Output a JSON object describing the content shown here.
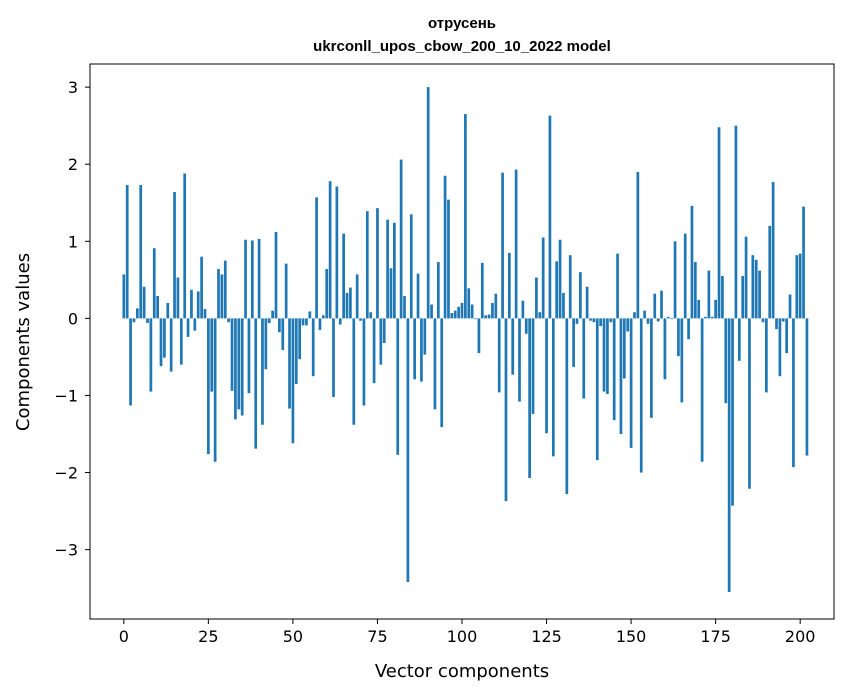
{
  "chart_data": {
    "type": "bar",
    "title": "отрусень",
    "subtitle": "ukrconll_upos_cbow_200_10_2022 model",
    "xlabel": "Vector components",
    "ylabel": "Components values",
    "xlim": [
      -10,
      210
    ],
    "ylim": [
      -3.9,
      3.3
    ],
    "xticks": [
      0,
      25,
      50,
      75,
      100,
      125,
      150,
      175,
      200
    ],
    "yticks": [
      -3,
      -2,
      -1,
      0,
      1,
      2,
      3
    ],
    "grid": false,
    "bar_color": "#1f77b4",
    "values": [
      0.57,
      1.73,
      -1.13,
      -0.05,
      0.13,
      1.73,
      0.41,
      -0.06,
      -0.95,
      0.91,
      0.29,
      -0.62,
      -0.51,
      0.2,
      -0.69,
      1.64,
      0.53,
      -0.6,
      1.88,
      -0.24,
      0.37,
      -0.16,
      0.35,
      0.8,
      0.12,
      -1.76,
      -0.95,
      -1.86,
      0.64,
      0.57,
      0.75,
      -0.05,
      -0.94,
      -1.31,
      -1.18,
      -1.26,
      1.02,
      -0.97,
      1.01,
      -1.69,
      1.03,
      -1.38,
      -0.66,
      -0.06,
      0.1,
      1.12,
      -0.18,
      -0.41,
      0.71,
      -1.17,
      -1.62,
      -0.85,
      -0.53,
      -0.09,
      -0.09,
      0.09,
      -0.75,
      1.57,
      -0.15,
      0.04,
      0.64,
      1.78,
      -1.02,
      1.71,
      -0.08,
      1.1,
      0.33,
      0.4,
      -1.38,
      0.57,
      -0.03,
      -1.13,
      1.39,
      0.08,
      -0.84,
      1.43,
      -0.6,
      -0.32,
      1.28,
      0.65,
      1.24,
      -1.77,
      2.06,
      0.29,
      -3.42,
      1.35,
      -0.79,
      0.58,
      -0.82,
      -0.47,
      3.0,
      0.18,
      -1.18,
      0.73,
      -1.41,
      1.85,
      1.54,
      0.07,
      0.1,
      0.15,
      0.2,
      2.65,
      0.39,
      0.18,
      -0.01,
      -0.45,
      0.72,
      0.04,
      0.05,
      0.2,
      0.32,
      -0.96,
      1.89,
      -2.37,
      0.85,
      -0.73,
      1.93,
      -1.08,
      0.23,
      -0.2,
      -2.07,
      -1.24,
      0.53,
      0.08,
      1.05,
      -1.49,
      2.63,
      -1.79,
      0.74,
      1.02,
      0.33,
      -2.28,
      0.82,
      -0.63,
      -0.07,
      0.6,
      -1.04,
      0.41,
      -0.03,
      -0.05,
      -1.84,
      -0.1,
      -0.95,
      -0.98,
      -0.05,
      -1.32,
      0.84,
      -1.5,
      -0.78,
      -0.17,
      -1.68,
      0.08,
      1.9,
      -2.0,
      0.1,
      -0.07,
      -1.29,
      0.32,
      -0.04,
      0.36,
      -0.79,
      0.02,
      -0.01,
      1.0,
      -0.49,
      -1.09,
      1.1,
      -0.27,
      1.46,
      0.73,
      0.24,
      -1.86,
      0.02,
      0.62,
      0.02,
      0.24,
      2.48,
      0.55,
      -1.1,
      -3.55,
      -2.43,
      2.5,
      -0.55,
      0.55,
      1.06,
      -2.21,
      0.82,
      0.76,
      0.62,
      -0.05,
      -0.96,
      1.2,
      1.77,
      -0.14,
      -0.75,
      -0.04,
      -0.45,
      0.31,
      -1.93,
      0.82,
      0.84,
      1.45,
      -1.78
    ]
  }
}
